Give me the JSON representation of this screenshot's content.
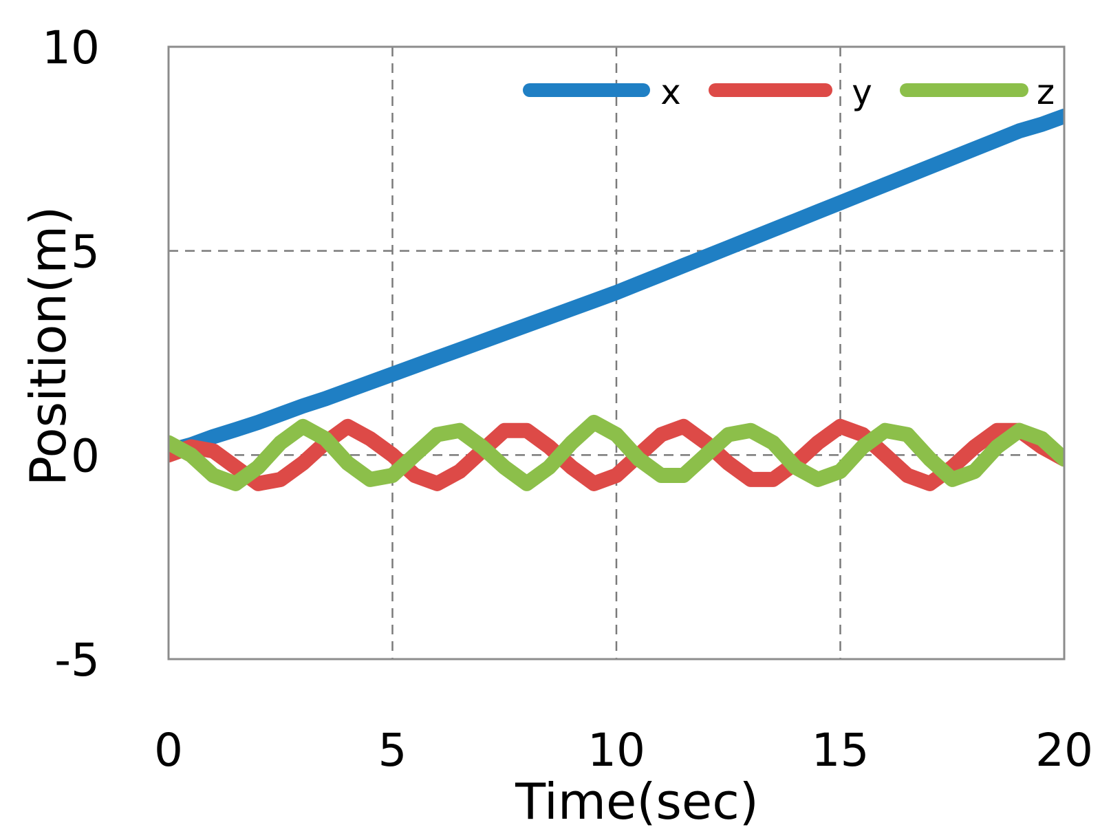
{
  "chart_data": {
    "type": "line",
    "title": "",
    "xlabel": "Time(sec)",
    "ylabel": "Position(m)",
    "xlim": [
      0,
      20
    ],
    "ylim": [
      -5,
      10
    ],
    "xticks": [
      0,
      5,
      10,
      15,
      20
    ],
    "yticks": [
      -5,
      0,
      5,
      10
    ],
    "xtick_labels": [
      "0",
      "5",
      "10",
      "15",
      "20"
    ],
    "ytick_labels": [
      "-5",
      "0",
      "5",
      "10"
    ],
    "grid": true,
    "legend_position": "top-right",
    "x": [
      0,
      0.5,
      1,
      1.5,
      2,
      2.5,
      3,
      3.5,
      4,
      4.5,
      5,
      5.5,
      6,
      6.5,
      7,
      7.5,
      8,
      8.5,
      9,
      9.5,
      10,
      10.5,
      11,
      11.5,
      12,
      12.5,
      13,
      13.5,
      14,
      14.5,
      15,
      15.5,
      16,
      16.5,
      17,
      17.5,
      18,
      18.5,
      19,
      19.5,
      20
    ],
    "series": [
      {
        "name": "x",
        "color": "#1f7fc4",
        "values": [
          0.1,
          0.25,
          0.45,
          0.62,
          0.8,
          1.0,
          1.2,
          1.38,
          1.58,
          1.78,
          1.98,
          2.18,
          2.38,
          2.58,
          2.78,
          2.98,
          3.18,
          3.38,
          3.58,
          3.78,
          3.98,
          4.2,
          4.42,
          4.64,
          4.86,
          5.08,
          5.3,
          5.52,
          5.74,
          5.96,
          6.18,
          6.4,
          6.62,
          6.84,
          7.06,
          7.28,
          7.5,
          7.72,
          7.94,
          8.1,
          8.3
        ]
      },
      {
        "name": "y",
        "color": "#dd4a47",
        "values": [
          0.0,
          0.2,
          0.1,
          -0.3,
          -0.7,
          -0.6,
          -0.2,
          0.3,
          0.7,
          0.4,
          0.0,
          -0.5,
          -0.7,
          -0.4,
          0.1,
          0.6,
          0.6,
          0.2,
          -0.3,
          -0.7,
          -0.5,
          0.0,
          0.5,
          0.7,
          0.3,
          -0.2,
          -0.6,
          -0.6,
          -0.2,
          0.3,
          0.7,
          0.5,
          0.0,
          -0.5,
          -0.7,
          -0.3,
          0.2,
          0.6,
          0.6,
          0.2,
          -0.1
        ]
      },
      {
        "name": "z",
        "color": "#8cbf4a",
        "values": [
          0.3,
          0.0,
          -0.5,
          -0.7,
          -0.3,
          0.3,
          0.7,
          0.4,
          -0.2,
          -0.6,
          -0.5,
          0.0,
          0.5,
          0.6,
          0.2,
          -0.3,
          -0.7,
          -0.3,
          0.3,
          0.8,
          0.5,
          -0.1,
          -0.5,
          -0.5,
          0.0,
          0.5,
          0.6,
          0.3,
          -0.3,
          -0.6,
          -0.4,
          0.2,
          0.6,
          0.5,
          -0.1,
          -0.6,
          -0.4,
          0.2,
          0.6,
          0.4,
          -0.1
        ]
      }
    ]
  }
}
